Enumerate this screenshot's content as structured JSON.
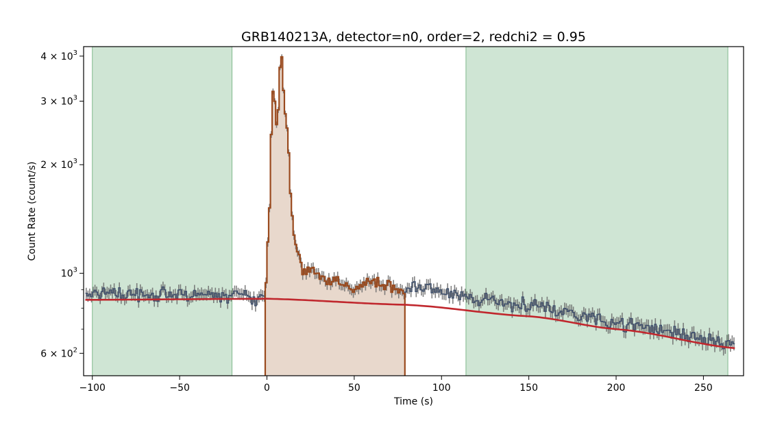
{
  "chart_data": {
    "type": "line",
    "title": "GRB140213A, detector=n0, order=2, redchi2 = 0.95",
    "xlabel": "Time (s)",
    "ylabel": "Count Rate (count/s)",
    "xlim": [
      -105,
      273
    ],
    "ylim": [
      520,
      4250
    ],
    "yscale": "log",
    "x_ticks": [
      -100,
      -50,
      0,
      50,
      100,
      150,
      200,
      250
    ],
    "x_tick_labels": [
      "−100",
      "−50",
      "0",
      "50",
      "100",
      "150",
      "200",
      "250"
    ],
    "y_major_ticks": [
      {
        "value": 600,
        "mantissa": "6",
        "base": "10",
        "exp": "2"
      },
      {
        "value": 1000,
        "mantissa": "",
        "base": "10",
        "exp": "3"
      },
      {
        "value": 2000,
        "mantissa": "2",
        "base": "10",
        "exp": "3"
      },
      {
        "value": 3000,
        "mantissa": "3",
        "base": "10",
        "exp": "3"
      },
      {
        "value": 4000,
        "mantissa": "4",
        "base": "10",
        "exp": "3"
      }
    ],
    "y_minor_ticks": [
      700,
      800,
      900
    ],
    "background_intervals": [
      [
        -100,
        -20
      ],
      [
        114,
        264
      ]
    ],
    "source_interval": [
      -1,
      79
    ],
    "lightcurve_bin_width": 1.0,
    "background_model": {
      "name": "",
      "type": "polynomial",
      "order": 2,
      "points": [
        [
          -104,
          844
        ],
        [
          0,
          850
        ],
        [
          79,
          818
        ],
        [
          150,
          760
        ],
        [
          200,
          700
        ],
        [
          268,
          620
        ]
      ]
    },
    "lightcurve_anchors": [
      [
        -104,
        880
      ],
      [
        -20,
        868
      ],
      [
        -1,
        860
      ],
      [
        0,
        1050
      ],
      [
        1,
        1400
      ],
      [
        2,
        1700
      ],
      [
        3,
        3150
      ],
      [
        4,
        3250
      ],
      [
        5,
        2700
      ],
      [
        6,
        2450
      ],
      [
        7,
        3200
      ],
      [
        8,
        4150
      ],
      [
        9,
        3800
      ],
      [
        10,
        2800
      ],
      [
        11,
        2650
      ],
      [
        12,
        2400
      ],
      [
        13,
        1800
      ],
      [
        14,
        1550
      ],
      [
        15,
        1350
      ],
      [
        16,
        1200
      ],
      [
        18,
        1100
      ],
      [
        20,
        1060
      ],
      [
        22,
        1010
      ],
      [
        25,
        1020
      ],
      [
        30,
        990
      ],
      [
        35,
        960
      ],
      [
        40,
        940
      ],
      [
        45,
        910
      ],
      [
        50,
        900
      ],
      [
        55,
        930
      ],
      [
        58,
        960
      ],
      [
        62,
        950
      ],
      [
        66,
        920
      ],
      [
        70,
        930
      ],
      [
        75,
        905
      ],
      [
        79,
        900
      ],
      [
        85,
        920
      ],
      [
        100,
        880
      ],
      [
        114,
        860
      ],
      [
        150,
        820
      ],
      [
        200,
        730
      ],
      [
        268,
        640
      ]
    ],
    "series": [
      {
        "name": "",
        "color": "#3d4f6d",
        "role": "lightcurve"
      },
      {
        "name": "",
        "color": "#8b4513",
        "role": "source"
      },
      {
        "name": "",
        "color": "#c0272d",
        "role": "background_fit"
      }
    ],
    "colors": {
      "background_shade": "#a7d0b0",
      "source_fill": "#e8d8cc",
      "source_line": "#9a4a1e",
      "lightcurve": "#3d4f6d",
      "errorbar": "#6b6b6b",
      "background_fit": "#c0272d"
    },
    "grid": false,
    "legend": "none"
  }
}
